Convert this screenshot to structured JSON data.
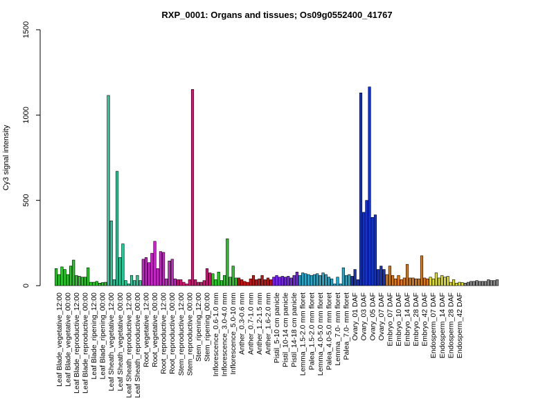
{
  "chart_data": {
    "type": "bar",
    "title": "RXP_0001: Organs and tissues; Os09g0552400_41767",
    "xlabel": "",
    "ylabel": "Cy3 signal intensity",
    "ylim": [
      0,
      1500
    ],
    "yticks": [
      0,
      500,
      1000,
      1500
    ],
    "grid": false,
    "legend": "none",
    "tick_labels": [
      "Leaf Blade_vegetative_12:00",
      "Leaf Blade_vegetative_00:00",
      "Leaf Blade_reproductive_12:00",
      "Leaf Blade_reproductive_00:00",
      "Leaf Blade_ripening_12:00",
      "Leaf Blade_ripening_00:00",
      "Leaf Sheath_vegetative_12:00",
      "Leaf Sheath_vegetative_00:00",
      "Leaf Sheath_reproductive_12:00",
      "Leaf Sheath_reproductive_00:00",
      "Root_vegetative_12:00",
      "Root_vegetative_00:00",
      "Root_reproductive_12:00",
      "Root_reproductive_00:00",
      "Stem_reproductive_12:00",
      "Stem_reproductive_00:00",
      "Stem_ripening_12:00",
      "Stem_ripening_00:00",
      "Inflorescence_0.6-1.0 mm",
      "Inflorescence_3.0-4.0 mm",
      "Inflorescence_5.0-10 mm",
      "Anther_0.3-0.6 mm",
      "Anther_0.7-1.0 mm",
      "Anther_1.2-1.5 mm",
      "Anther_1.6-2.0 mm",
      "Pistil_5-10 cm panicle",
      "Pistil_10-14 cm panicle",
      "Pistil_14-18 cm panicle",
      "Lemma_1.5-2.0 mm floret",
      "Palea_1.5-2.0 mm floret",
      "Lemma_4.0-5.0 mm floret",
      "Palea_4.0-5.0 mm floret",
      "Lemma_7.0- mm floret",
      "Palea_7.0- mm floret",
      "Ovary_01 DAF",
      "Ovary_03 DAF",
      "Ovary_05 DAF",
      "Ovary_07 DAF",
      "Embryo_07 DAF",
      "Embryo_10 DAF",
      "Embryo_14 DAF",
      "Embryo_28 DAF",
      "Embryo_42 DAF",
      "Endosperm_07 DAF",
      "Endosperm_14 DAF",
      "Endosperm_28 DAF",
      "Endosperm_42 DAF"
    ],
    "group_size": 3,
    "group_colors": [
      "#22cc22",
      "#22cc22",
      "#22cc22",
      "#22cc22",
      "#22cc22",
      "#22cc22",
      "#22cc99",
      "#22cc99",
      "#22cc99",
      "#22cc99",
      "#cc22cc",
      "#cc22cc",
      "#cc22cc",
      "#cc22cc",
      "#dd1177",
      "#dd1177",
      "#dd1177",
      "#dd1177",
      "#22cc22",
      "#22cc22",
      "#22cc22",
      "#cc1111",
      "#cc1111",
      "#cc1111",
      "#cc1111",
      "#7722ee",
      "#7722ee",
      "#7722ee",
      "#22aacc",
      "#22aacc",
      "#22aacc",
      "#22aacc",
      "#22aacc",
      "#22aacc",
      "#1133cc",
      "#1133cc",
      "#1133cc",
      "#1133cc",
      "#dd7711",
      "#dd7711",
      "#dd7711",
      "#dd7711",
      "#dd7711",
      "#dddd22",
      "#dddd22",
      "#dddd22",
      "#dddd22"
    ],
    "values": [
      100,
      65,
      110,
      95,
      65,
      115,
      150,
      60,
      55,
      50,
      50,
      105,
      20,
      20,
      25,
      15,
      18,
      20,
      1115,
      380,
      35,
      670,
      165,
      245,
      30,
      10,
      60,
      30,
      60,
      30,
      155,
      165,
      135,
      190,
      260,
      100,
      200,
      195,
      40,
      145,
      155,
      40,
      35,
      35,
      20,
      10,
      35,
      1150,
      35,
      20,
      20,
      30,
      100,
      75,
      70,
      35,
      80,
      30,
      60,
      275,
      50,
      115,
      45,
      45,
      35,
      25,
      20,
      40,
      60,
      35,
      40,
      60,
      35,
      45,
      35,
      50,
      60,
      50,
      55,
      50,
      55,
      45,
      60,
      80,
      60,
      75,
      70,
      65,
      60,
      65,
      70,
      60,
      75,
      65,
      50,
      40,
      10,
      50,
      10,
      105,
      60,
      65,
      55,
      95,
      35,
      1130,
      430,
      500,
      1165,
      400,
      415,
      95,
      115,
      95,
      65,
      115,
      60,
      40,
      60,
      35,
      45,
      125,
      45,
      45,
      40,
      40,
      175,
      45,
      40,
      50,
      40,
      75,
      45,
      60,
      50,
      55,
      20,
      35,
      15,
      20,
      18,
      15,
      20,
      25,
      25,
      30,
      25,
      25,
      25,
      35,
      30,
      30,
      35
    ]
  }
}
